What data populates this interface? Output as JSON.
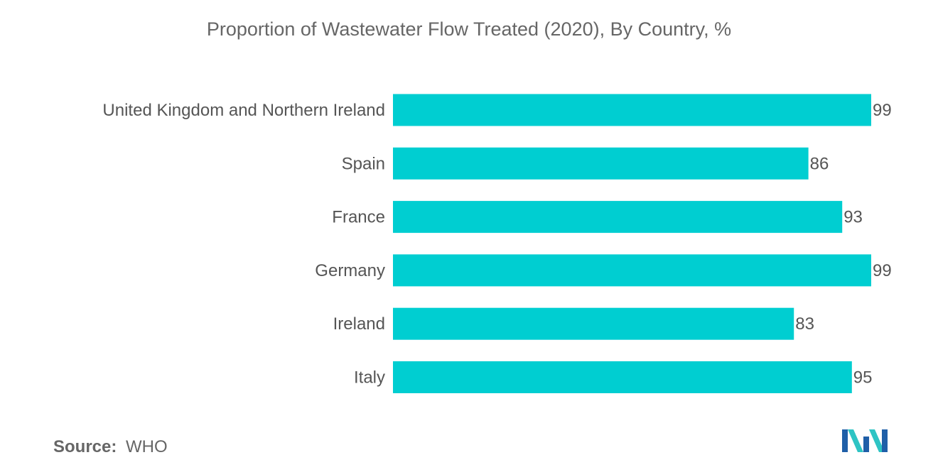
{
  "chart_data": {
    "type": "bar",
    "orientation": "horizontal",
    "title": "Proportion of Wastewater Flow Treated (2020), By Country,  %",
    "categories": [
      "United Kingdom and Northern Ireland",
      "Spain",
      "France",
      "Germany",
      "Ireland",
      "Italy"
    ],
    "values": [
      99,
      86,
      93,
      99,
      83,
      95
    ],
    "xlim": [
      0,
      100
    ],
    "grid": false,
    "legend": "none",
    "bar_color": "#00CED1",
    "data_labels": true
  },
  "source": {
    "label": "Source:",
    "value": "WHO"
  },
  "logo": {
    "name": "mordor-intelligence-logo",
    "colors": [
      "#1f5fa8",
      "#2ec4c4"
    ]
  }
}
